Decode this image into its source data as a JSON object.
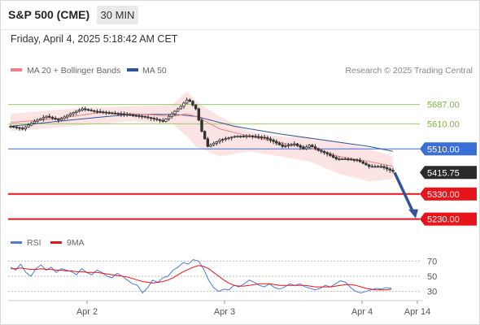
{
  "header": {
    "symbol": "S&P 500 (CME)",
    "timeframe": "30 MIN",
    "timestamp": "Friday, April 4, 2025 5:18:42 AM CET"
  },
  "credit": "Research © 2025 Trading Central",
  "chart_data": [
    {
      "type": "candlestick",
      "legend": [
        {
          "name": "MA 20 + Bollinger Bands",
          "color": "#f08080"
        },
        {
          "name": "MA 50",
          "color": "#2f5597"
        }
      ],
      "legend_position": "top-left",
      "ylim": [
        5180,
        5780
      ],
      "current_price": "5415.75",
      "levels": [
        {
          "label": "5687.00",
          "value": 5687,
          "color": "#99cc66",
          "kind": "resistance"
        },
        {
          "label": "5610.00",
          "value": 5610,
          "color": "#99cc66",
          "kind": "resistance"
        },
        {
          "label": "5510.00",
          "value": 5510,
          "color": "#3a6fd8",
          "kind": "pivot"
        },
        {
          "label": "5330.00",
          "value": 5330,
          "color": "#e8141b",
          "kind": "support"
        },
        {
          "label": "5230.00",
          "value": 5230,
          "color": "#e8141b",
          "kind": "support"
        }
      ],
      "x_ticks": [
        "Apr 2",
        "Apr 3",
        "Apr 4",
        "Apr 14"
      ],
      "close_path": [
        [
          0,
          5600
        ],
        [
          8,
          5590
        ],
        [
          16,
          5620
        ],
        [
          24,
          5640
        ],
        [
          32,
          5625
        ],
        [
          40,
          5650
        ],
        [
          48,
          5670
        ],
        [
          56,
          5660
        ],
        [
          64,
          5655
        ],
        [
          72,
          5650
        ],
        [
          80,
          5645
        ],
        [
          88,
          5640
        ],
        [
          96,
          5630
        ],
        [
          102,
          5620
        ],
        [
          108,
          5650
        ],
        [
          114,
          5680
        ],
        [
          118,
          5705
        ],
        [
          120,
          5700
        ],
        [
          124,
          5670
        ],
        [
          128,
          5580
        ],
        [
          132,
          5520
        ],
        [
          140,
          5545
        ],
        [
          150,
          5560
        ],
        [
          160,
          5562
        ],
        [
          170,
          5555
        ],
        [
          176,
          5540
        ],
        [
          182,
          5520
        ],
        [
          190,
          5530
        ],
        [
          196,
          5510
        ],
        [
          200,
          5525
        ],
        [
          206,
          5505
        ],
        [
          212,
          5490
        ],
        [
          218,
          5470
        ],
        [
          224,
          5470
        ],
        [
          232,
          5465
        ],
        [
          240,
          5440
        ],
        [
          248,
          5440
        ],
        [
          256,
          5420
        ]
      ],
      "ma20": [
        [
          0,
          5615
        ],
        [
          30,
          5630
        ],
        [
          60,
          5655
        ],
        [
          90,
          5648
        ],
        [
          108,
          5640
        ],
        [
          118,
          5650
        ],
        [
          124,
          5640
        ],
        [
          140,
          5590
        ],
        [
          160,
          5560
        ],
        [
          180,
          5535
        ],
        [
          200,
          5515
        ],
        [
          220,
          5480
        ],
        [
          240,
          5460
        ],
        [
          256,
          5440
        ]
      ],
      "ma50": [
        [
          0,
          5600
        ],
        [
          40,
          5625
        ],
        [
          80,
          5648
        ],
        [
          110,
          5648
        ],
        [
          124,
          5640
        ],
        [
          150,
          5600
        ],
        [
          180,
          5570
        ],
        [
          210,
          5545
        ],
        [
          240,
          5520
        ],
        [
          256,
          5500
        ]
      ],
      "bollinger_upper": [
        [
          0,
          5650
        ],
        [
          40,
          5670
        ],
        [
          80,
          5680
        ],
        [
          108,
          5685
        ],
        [
          118,
          5740
        ],
        [
          124,
          5700
        ],
        [
          140,
          5640
        ],
        [
          160,
          5580
        ],
        [
          180,
          5560
        ],
        [
          200,
          5555
        ],
        [
          220,
          5540
        ],
        [
          240,
          5510
        ],
        [
          256,
          5480
        ]
      ],
      "bollinger_lower": [
        [
          0,
          5580
        ],
        [
          40,
          5600
        ],
        [
          80,
          5620
        ],
        [
          108,
          5610
        ],
        [
          118,
          5560
        ],
        [
          124,
          5520
        ],
        [
          140,
          5480
        ],
        [
          160,
          5500
        ],
        [
          180,
          5480
        ],
        [
          200,
          5460
        ],
        [
          220,
          5410
        ],
        [
          240,
          5380
        ],
        [
          256,
          5390
        ]
      ],
      "projection": {
        "from": 5415.75,
        "to": 5230
      }
    },
    {
      "type": "line",
      "legend": [
        {
          "name": "RSI",
          "color": "#4a7bd9"
        },
        {
          "name": "9MA",
          "color": "#e8141b"
        }
      ],
      "legend_position": "top-left",
      "ylim": [
        20,
        80
      ],
      "y_ticks": [
        70,
        50,
        30
      ],
      "series": [
        {
          "name": "RSI",
          "color": "#4a7bd9",
          "values": [
            62,
            58,
            66,
            55,
            50,
            60,
            65,
            58,
            62,
            55,
            60,
            58,
            56,
            52,
            60,
            55,
            52,
            58,
            55,
            50,
            48,
            54,
            50,
            45,
            40,
            38,
            28,
            35,
            45,
            42,
            48,
            50,
            58,
            62,
            68,
            66,
            72,
            70,
            60,
            45,
            35,
            30,
            33,
            32,
            38,
            36,
            40,
            45,
            42,
            38,
            36,
            40,
            35,
            33,
            36,
            40,
            38,
            40,
            36,
            34,
            32,
            34,
            38,
            36,
            40,
            44,
            42,
            35,
            30,
            28,
            30,
            32,
            34,
            33,
            35,
            34
          ]
        },
        {
          "name": "9MA",
          "color": "#e8141b",
          "values": [
            60,
            60,
            61,
            60,
            59,
            59,
            60,
            59,
            59,
            58,
            58,
            57,
            57,
            56,
            56,
            55,
            55,
            55,
            54,
            53,
            52,
            51,
            50,
            49,
            47,
            45,
            43,
            42,
            41,
            42,
            43,
            45,
            48,
            52,
            56,
            59,
            62,
            64,
            63,
            60,
            55,
            50,
            45,
            41,
            38,
            37,
            37,
            38,
            39,
            40,
            40,
            40,
            39,
            38,
            38,
            38,
            38,
            38,
            38,
            37,
            36,
            36,
            36,
            36,
            37,
            38,
            39,
            39,
            38,
            36,
            34,
            33,
            32,
            32,
            32,
            33
          ]
        }
      ]
    }
  ]
}
